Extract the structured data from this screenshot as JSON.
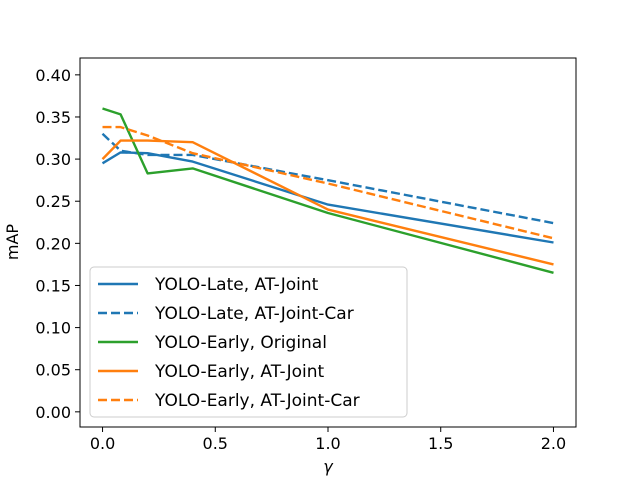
{
  "chart_data": {
    "type": "line",
    "title": "",
    "xlabel": "γ",
    "ylabel": "mAP",
    "xlim": [
      -0.1,
      2.1
    ],
    "ylim": [
      -0.018,
      0.42
    ],
    "xticks": [
      0.0,
      0.5,
      1.0,
      1.5,
      2.0
    ],
    "xtick_labels": [
      "0.0",
      "0.5",
      "1.0",
      "1.5",
      "2.0"
    ],
    "yticks": [
      0.0,
      0.05,
      0.1,
      0.15,
      0.2,
      0.25,
      0.3,
      0.35,
      0.4
    ],
    "ytick_labels": [
      "0.00",
      "0.05",
      "0.10",
      "0.15",
      "0.20",
      "0.25",
      "0.30",
      "0.35",
      "0.40"
    ],
    "grid": false,
    "legend_position": "lower-left",
    "series": [
      {
        "name": "YOLO-Late, AT-Joint",
        "color": "#1f77b4",
        "dash": "solid",
        "x": [
          0.0,
          0.08,
          0.2,
          0.4,
          1.0,
          2.0
        ],
        "y": [
          0.295,
          0.308,
          0.307,
          0.297,
          0.246,
          0.201
        ]
      },
      {
        "name": "YOLO-Late, AT-Joint-Car",
        "color": "#1f77b4",
        "dash": "dashed",
        "x": [
          0.0,
          0.08,
          0.2,
          0.4,
          1.0,
          2.0
        ],
        "y": [
          0.33,
          0.31,
          0.305,
          0.305,
          0.275,
          0.224
        ]
      },
      {
        "name": "YOLO-Early, Original",
        "color": "#2ca02c",
        "dash": "solid",
        "x": [
          0.0,
          0.08,
          0.2,
          0.4,
          1.0,
          2.0
        ],
        "y": [
          0.36,
          0.353,
          0.283,
          0.289,
          0.236,
          0.165
        ]
      },
      {
        "name": "YOLO-Early, AT-Joint",
        "color": "#ff7f0e",
        "dash": "solid",
        "x": [
          0.0,
          0.08,
          0.2,
          0.4,
          1.0,
          2.0
        ],
        "y": [
          0.3,
          0.322,
          0.322,
          0.32,
          0.24,
          0.175
        ]
      },
      {
        "name": "YOLO-Early, AT-Joint-Car",
        "color": "#ff7f0e",
        "dash": "dashed",
        "x": [
          0.0,
          0.08,
          0.2,
          0.4,
          1.0,
          2.0
        ],
        "y": [
          0.338,
          0.338,
          0.328,
          0.307,
          0.271,
          0.206
        ]
      }
    ]
  }
}
